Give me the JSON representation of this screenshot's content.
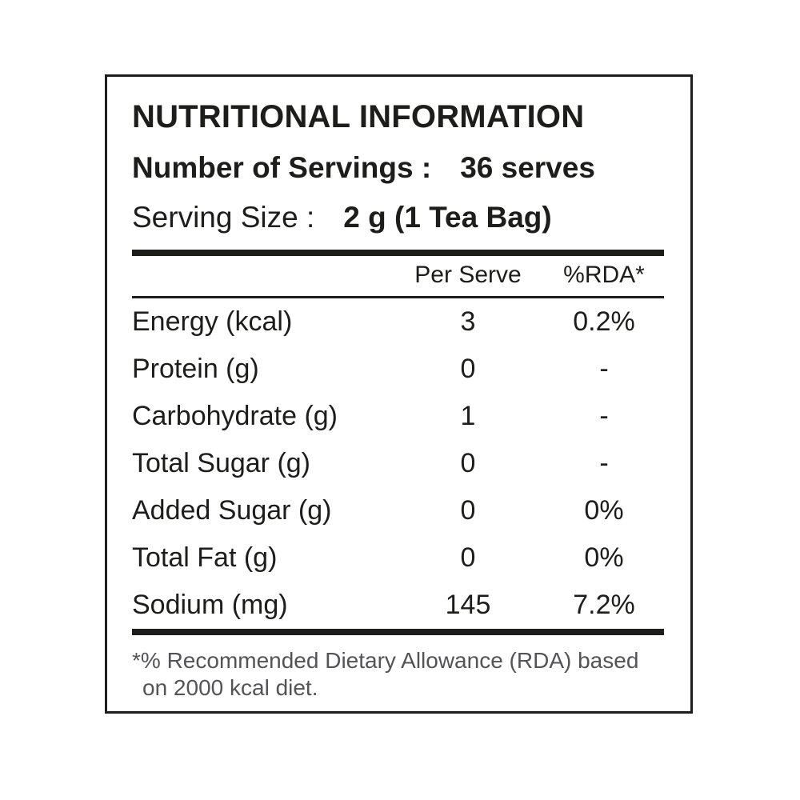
{
  "panel": {
    "title": "NUTRITIONAL INFORMATION",
    "servings_label": "Number of Servings :",
    "servings_value": "36 serves",
    "serving_size_label": "Serving Size :",
    "serving_size_value": "2 g (1 Tea Bag)"
  },
  "table": {
    "header": {
      "per_serve": "Per Serve",
      "rda": "%RDA*"
    },
    "rows": [
      {
        "label": "Energy (kcal)",
        "per_serve": "3",
        "rda": "0.2%"
      },
      {
        "label": "Protein (g)",
        "per_serve": "0",
        "rda": "-"
      },
      {
        "label": "Carbohydrate (g)",
        "per_serve": "1",
        "rda": "-"
      },
      {
        "label": "Total Sugar (g)",
        "per_serve": "0",
        "rda": "-"
      },
      {
        "label": "Added Sugar (g)",
        "per_serve": "0",
        "rda": "0%"
      },
      {
        "label": "Total Fat (g)",
        "per_serve": "0",
        "rda": "0%"
      },
      {
        "label": "Sodium (mg)",
        "per_serve": "145",
        "rda": "7.2%"
      }
    ]
  },
  "footnote": {
    "line1": "*% Recommended Dietary Allowance (RDA) based",
    "line2": "on 2000 kcal diet."
  },
  "colors": {
    "text": "#1d1d1b",
    "footnote_text": "#545457",
    "border": "#1d1d1b",
    "background": "#ffffff"
  }
}
